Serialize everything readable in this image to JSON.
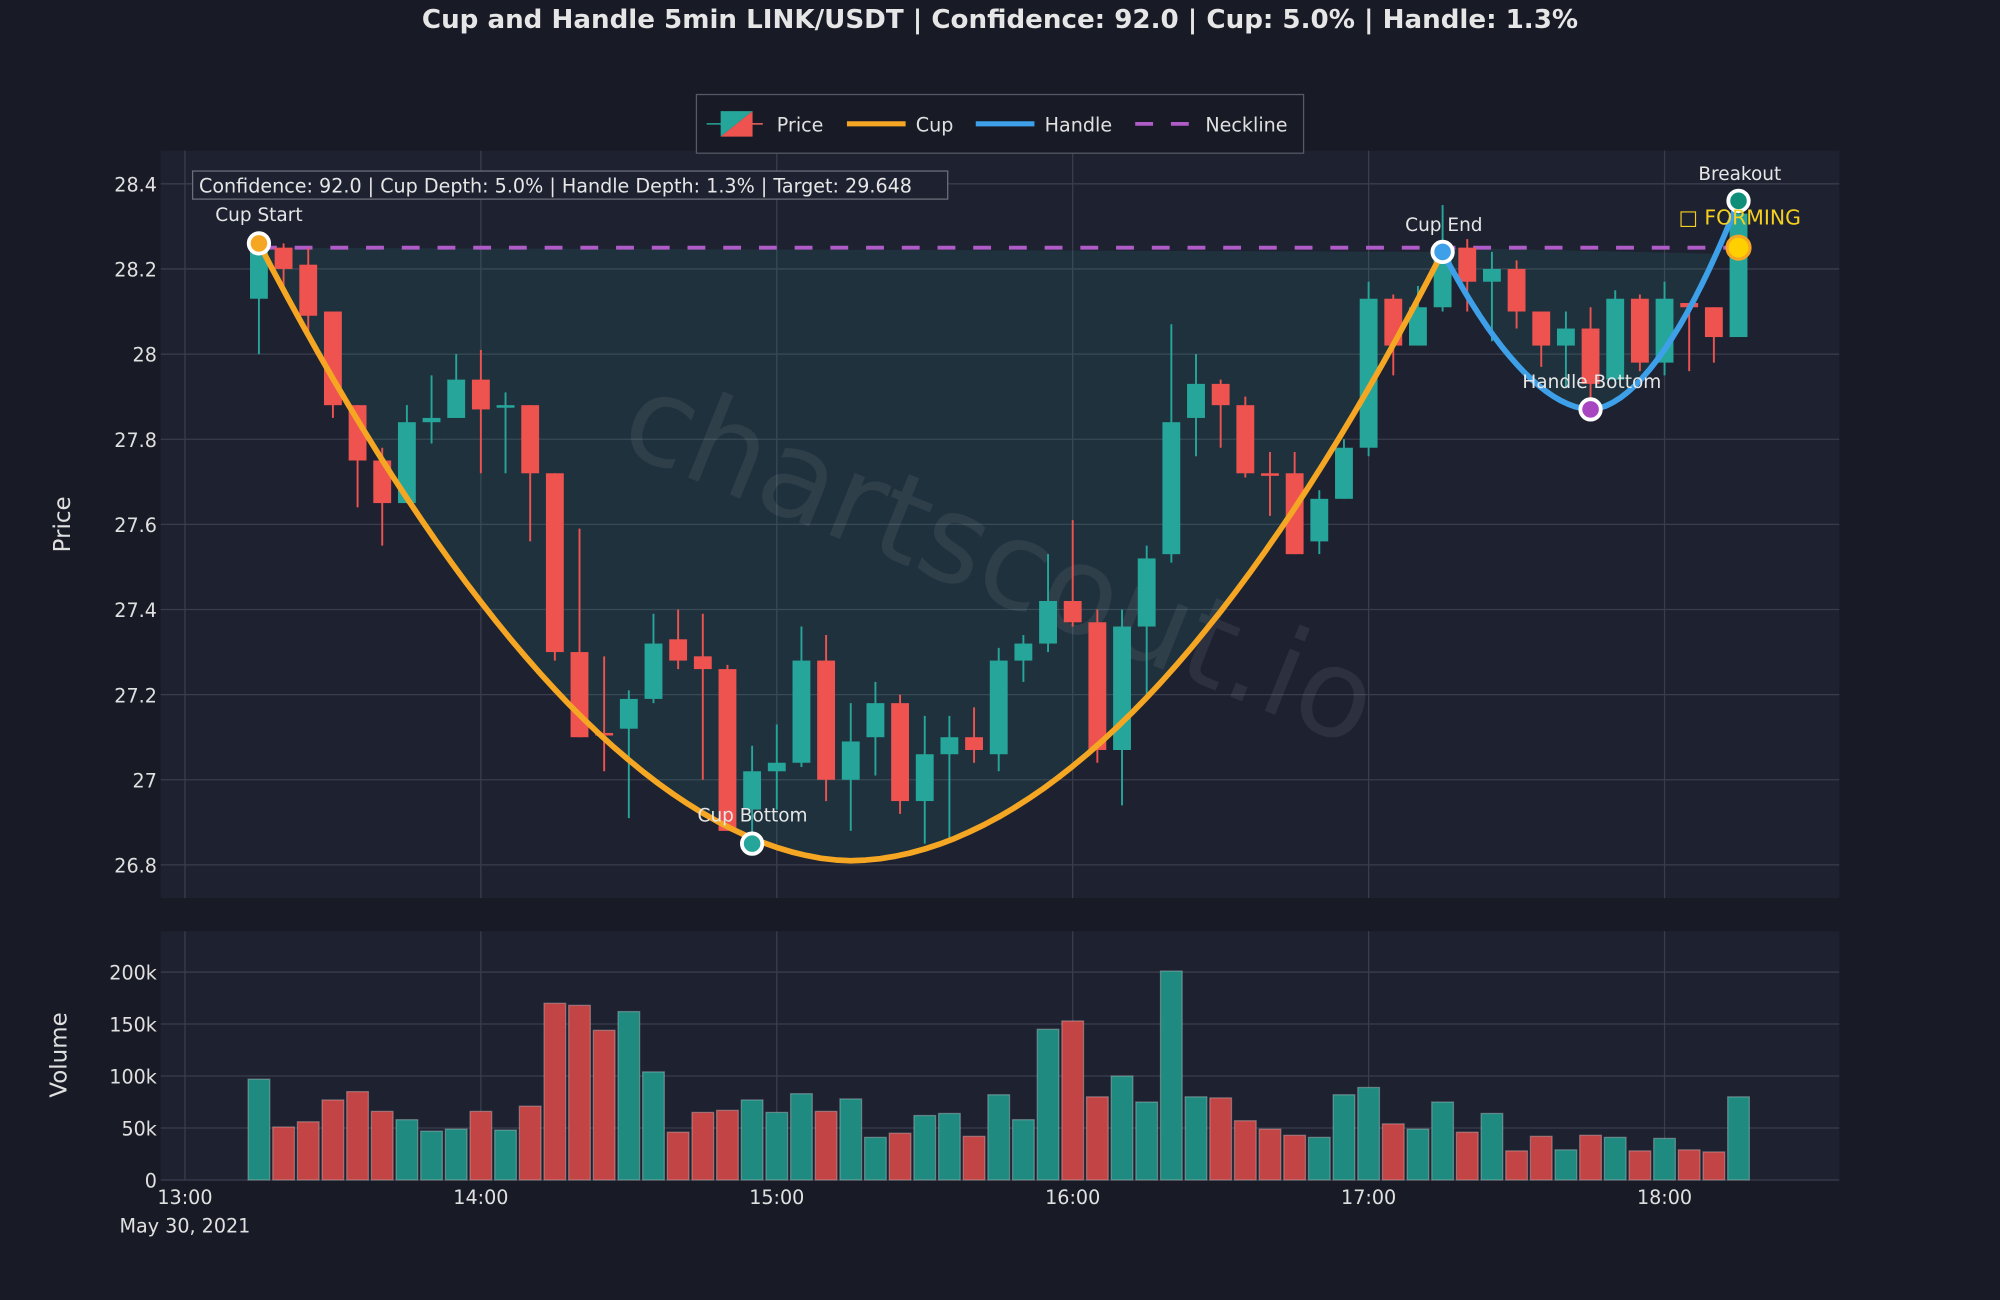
{
  "title": "Cup and Handle 5min LINK/USDT | Confidence: 92.0 | Cup: 5.0% | Handle: 1.3%",
  "legend": [
    {
      "label": "Price",
      "type": "candle"
    },
    {
      "label": "Cup",
      "color": "#f5a623"
    },
    {
      "label": "Handle",
      "color": "#3ea0e8"
    },
    {
      "label": "Neckline",
      "color": "#b05cc8",
      "dash": true
    }
  ],
  "info_box": "Confidence: 92.0 | Cup Depth: 5.0% | Handle Depth: 1.3% | Target: 29.648",
  "watermark": "chartscout.io",
  "annotations": {
    "cup_start": "Cup Start",
    "cup_bottom": "Cup Bottom",
    "cup_end": "Cup End",
    "handle_bottom": "Handle Bottom",
    "breakout": "Breakout",
    "status": "□ FORMING"
  },
  "axes": {
    "price_label": "Price",
    "volume_label": "Volume",
    "price_ticks": [
      "28.4",
      "28.2",
      "28",
      "27.8",
      "27.6",
      "27.4",
      "27.2",
      "27",
      "26.8"
    ],
    "volume_ticks": [
      "200k",
      "150k",
      "100k",
      "50k",
      "0"
    ],
    "time_ticks": [
      "13:00",
      "14:00",
      "15:00",
      "16:00",
      "17:00",
      "18:00"
    ],
    "date_label": "May 30, 2021"
  },
  "colors": {
    "up": "#26a69a",
    "down": "#ef5350",
    "cup": "#f5a623",
    "handle": "#3ea0e8",
    "neckline": "#b05cc8",
    "background": "#181b26",
    "plot_bg": "#1e2130"
  },
  "chart_data": {
    "type": "candlestick",
    "title": "Cup and Handle 5min LINK/USDT | Confidence: 92.0 | Cup: 5.0% | Handle: 1.3%",
    "xlabel": "",
    "ylabel": "Price",
    "ylim": [
      26.75,
      28.48
    ],
    "volume_ylabel": "Volume",
    "volume_ylim": [
      0,
      235000
    ],
    "legend_position": "top-center",
    "grid": true,
    "x": [
      "13:15",
      "13:20",
      "13:25",
      "13:30",
      "13:35",
      "13:40",
      "13:45",
      "13:50",
      "13:55",
      "14:00",
      "14:05",
      "14:10",
      "14:15",
      "14:20",
      "14:25",
      "14:30",
      "14:35",
      "14:40",
      "14:45",
      "14:50",
      "14:55",
      "15:00",
      "15:05",
      "15:10",
      "15:15",
      "15:20",
      "15:25",
      "15:30",
      "15:35",
      "15:40",
      "15:45",
      "15:50",
      "15:55",
      "16:00",
      "16:05",
      "16:10",
      "16:15",
      "16:20",
      "16:25",
      "16:30",
      "16:35",
      "16:40",
      "16:45",
      "16:50",
      "16:55",
      "17:00",
      "17:05",
      "17:10",
      "17:15",
      "17:20",
      "17:25",
      "17:30",
      "17:35",
      "17:40",
      "17:45",
      "17:50",
      "17:55",
      "18:00",
      "18:05",
      "18:10",
      "18:15"
    ],
    "open": [
      28.13,
      28.25,
      28.21,
      28.1,
      27.88,
      27.75,
      27.65,
      27.84,
      27.85,
      27.94,
      27.88,
      27.88,
      27.72,
      27.3,
      27.11,
      27.12,
      27.19,
      27.33,
      27.29,
      27.26,
      26.93,
      27.02,
      27.04,
      27.28,
      27.0,
      27.1,
      27.18,
      26.95,
      27.06,
      27.1,
      27.06,
      27.28,
      27.32,
      27.42,
      27.37,
      27.07,
      27.36,
      27.53,
      27.85,
      27.93,
      27.88,
      27.72,
      27.72,
      27.56,
      27.66,
      27.78,
      28.13,
      28.02,
      28.11,
      28.25,
      28.17,
      28.2,
      28.1,
      28.02,
      28.06,
      27.94,
      28.13,
      27.98,
      28.12,
      28.11,
      28.04
    ],
    "high": [
      28.26,
      28.26,
      28.25,
      28.1,
      27.88,
      27.78,
      27.88,
      27.95,
      28.0,
      28.01,
      27.91,
      27.88,
      27.72,
      27.59,
      27.29,
      27.21,
      27.39,
      27.4,
      27.39,
      27.27,
      27.08,
      27.13,
      27.36,
      27.34,
      27.18,
      27.23,
      27.2,
      27.15,
      27.15,
      27.17,
      27.31,
      27.34,
      27.53,
      27.61,
      27.4,
      27.4,
      27.55,
      28.07,
      28.0,
      27.94,
      27.9,
      27.77,
      27.77,
      27.68,
      27.8,
      28.17,
      28.14,
      28.16,
      28.35,
      28.27,
      28.24,
      28.22,
      28.1,
      28.1,
      28.11,
      28.15,
      28.14,
      28.17,
      28.12,
      28.11,
      28.36
    ],
    "low": [
      28.0,
      28.15,
      28.05,
      27.85,
      27.64,
      27.55,
      27.65,
      27.79,
      27.85,
      27.72,
      27.72,
      27.56,
      27.28,
      27.1,
      27.02,
      26.91,
      27.18,
      27.26,
      27.0,
      26.88,
      26.85,
      26.93,
      27.03,
      26.95,
      26.88,
      27.01,
      26.92,
      26.85,
      26.86,
      27.04,
      27.02,
      27.23,
      27.3,
      27.36,
      27.04,
      26.94,
      27.2,
      27.51,
      27.76,
      27.78,
      27.71,
      27.62,
      27.53,
      27.53,
      27.66,
      27.76,
      27.95,
      28.02,
      28.1,
      28.1,
      28.03,
      28.06,
      27.97,
      27.92,
      27.88,
      27.94,
      27.96,
      27.95,
      27.96,
      27.98,
      28.04
    ],
    "close": [
      28.26,
      28.2,
      28.09,
      27.88,
      27.75,
      27.65,
      27.84,
      27.85,
      27.94,
      27.87,
      27.88,
      27.72,
      27.3,
      27.1,
      27.11,
      27.19,
      27.32,
      27.28,
      27.26,
      26.88,
      27.02,
      27.04,
      27.28,
      27.0,
      27.09,
      27.18,
      26.95,
      27.06,
      27.1,
      27.07,
      27.28,
      27.32,
      27.42,
      27.37,
      27.07,
      27.36,
      27.52,
      27.84,
      27.93,
      27.88,
      27.72,
      27.72,
      27.53,
      27.66,
      27.78,
      28.13,
      28.02,
      28.11,
      28.24,
      28.17,
      28.2,
      28.1,
      28.02,
      28.06,
      27.93,
      28.13,
      27.98,
      28.13,
      28.11,
      28.04,
      28.33
    ],
    "volume": [
      97000,
      51000,
      56000,
      77000,
      85000,
      66000,
      58000,
      47000,
      49000,
      66000,
      48000,
      71000,
      170000,
      168000,
      144000,
      162000,
      104000,
      46000,
      65000,
      67000,
      77000,
      65000,
      83000,
      66000,
      78000,
      41000,
      45000,
      62000,
      64000,
      42000,
      82000,
      58000,
      145000,
      153000,
      80000,
      100000,
      75000,
      201000,
      80000,
      79000,
      57000,
      49000,
      43000,
      41000,
      82000,
      89000,
      54000,
      49000,
      75000,
      46000,
      64000,
      28000,
      42000,
      29000,
      43000,
      41000,
      28000,
      40000,
      29000,
      27000,
      80000
    ],
    "pattern": {
      "cup_start": {
        "time": "13:15",
        "price": 28.26
      },
      "cup_bottom": {
        "time": "14:55",
        "price": 26.85
      },
      "cup_end": {
        "time": "17:15",
        "price": 28.24
      },
      "handle_bottom": {
        "time": "17:45",
        "price": 27.87
      },
      "breakout": {
        "time": "18:15",
        "price": 28.36
      },
      "current": {
        "time": "18:15",
        "price": 28.25
      },
      "neckline": 28.25,
      "target": 29.648,
      "confidence": 92.0,
      "cup_depth_pct": 5.0,
      "handle_depth_pct": 1.3,
      "status": "FORMING"
    }
  }
}
